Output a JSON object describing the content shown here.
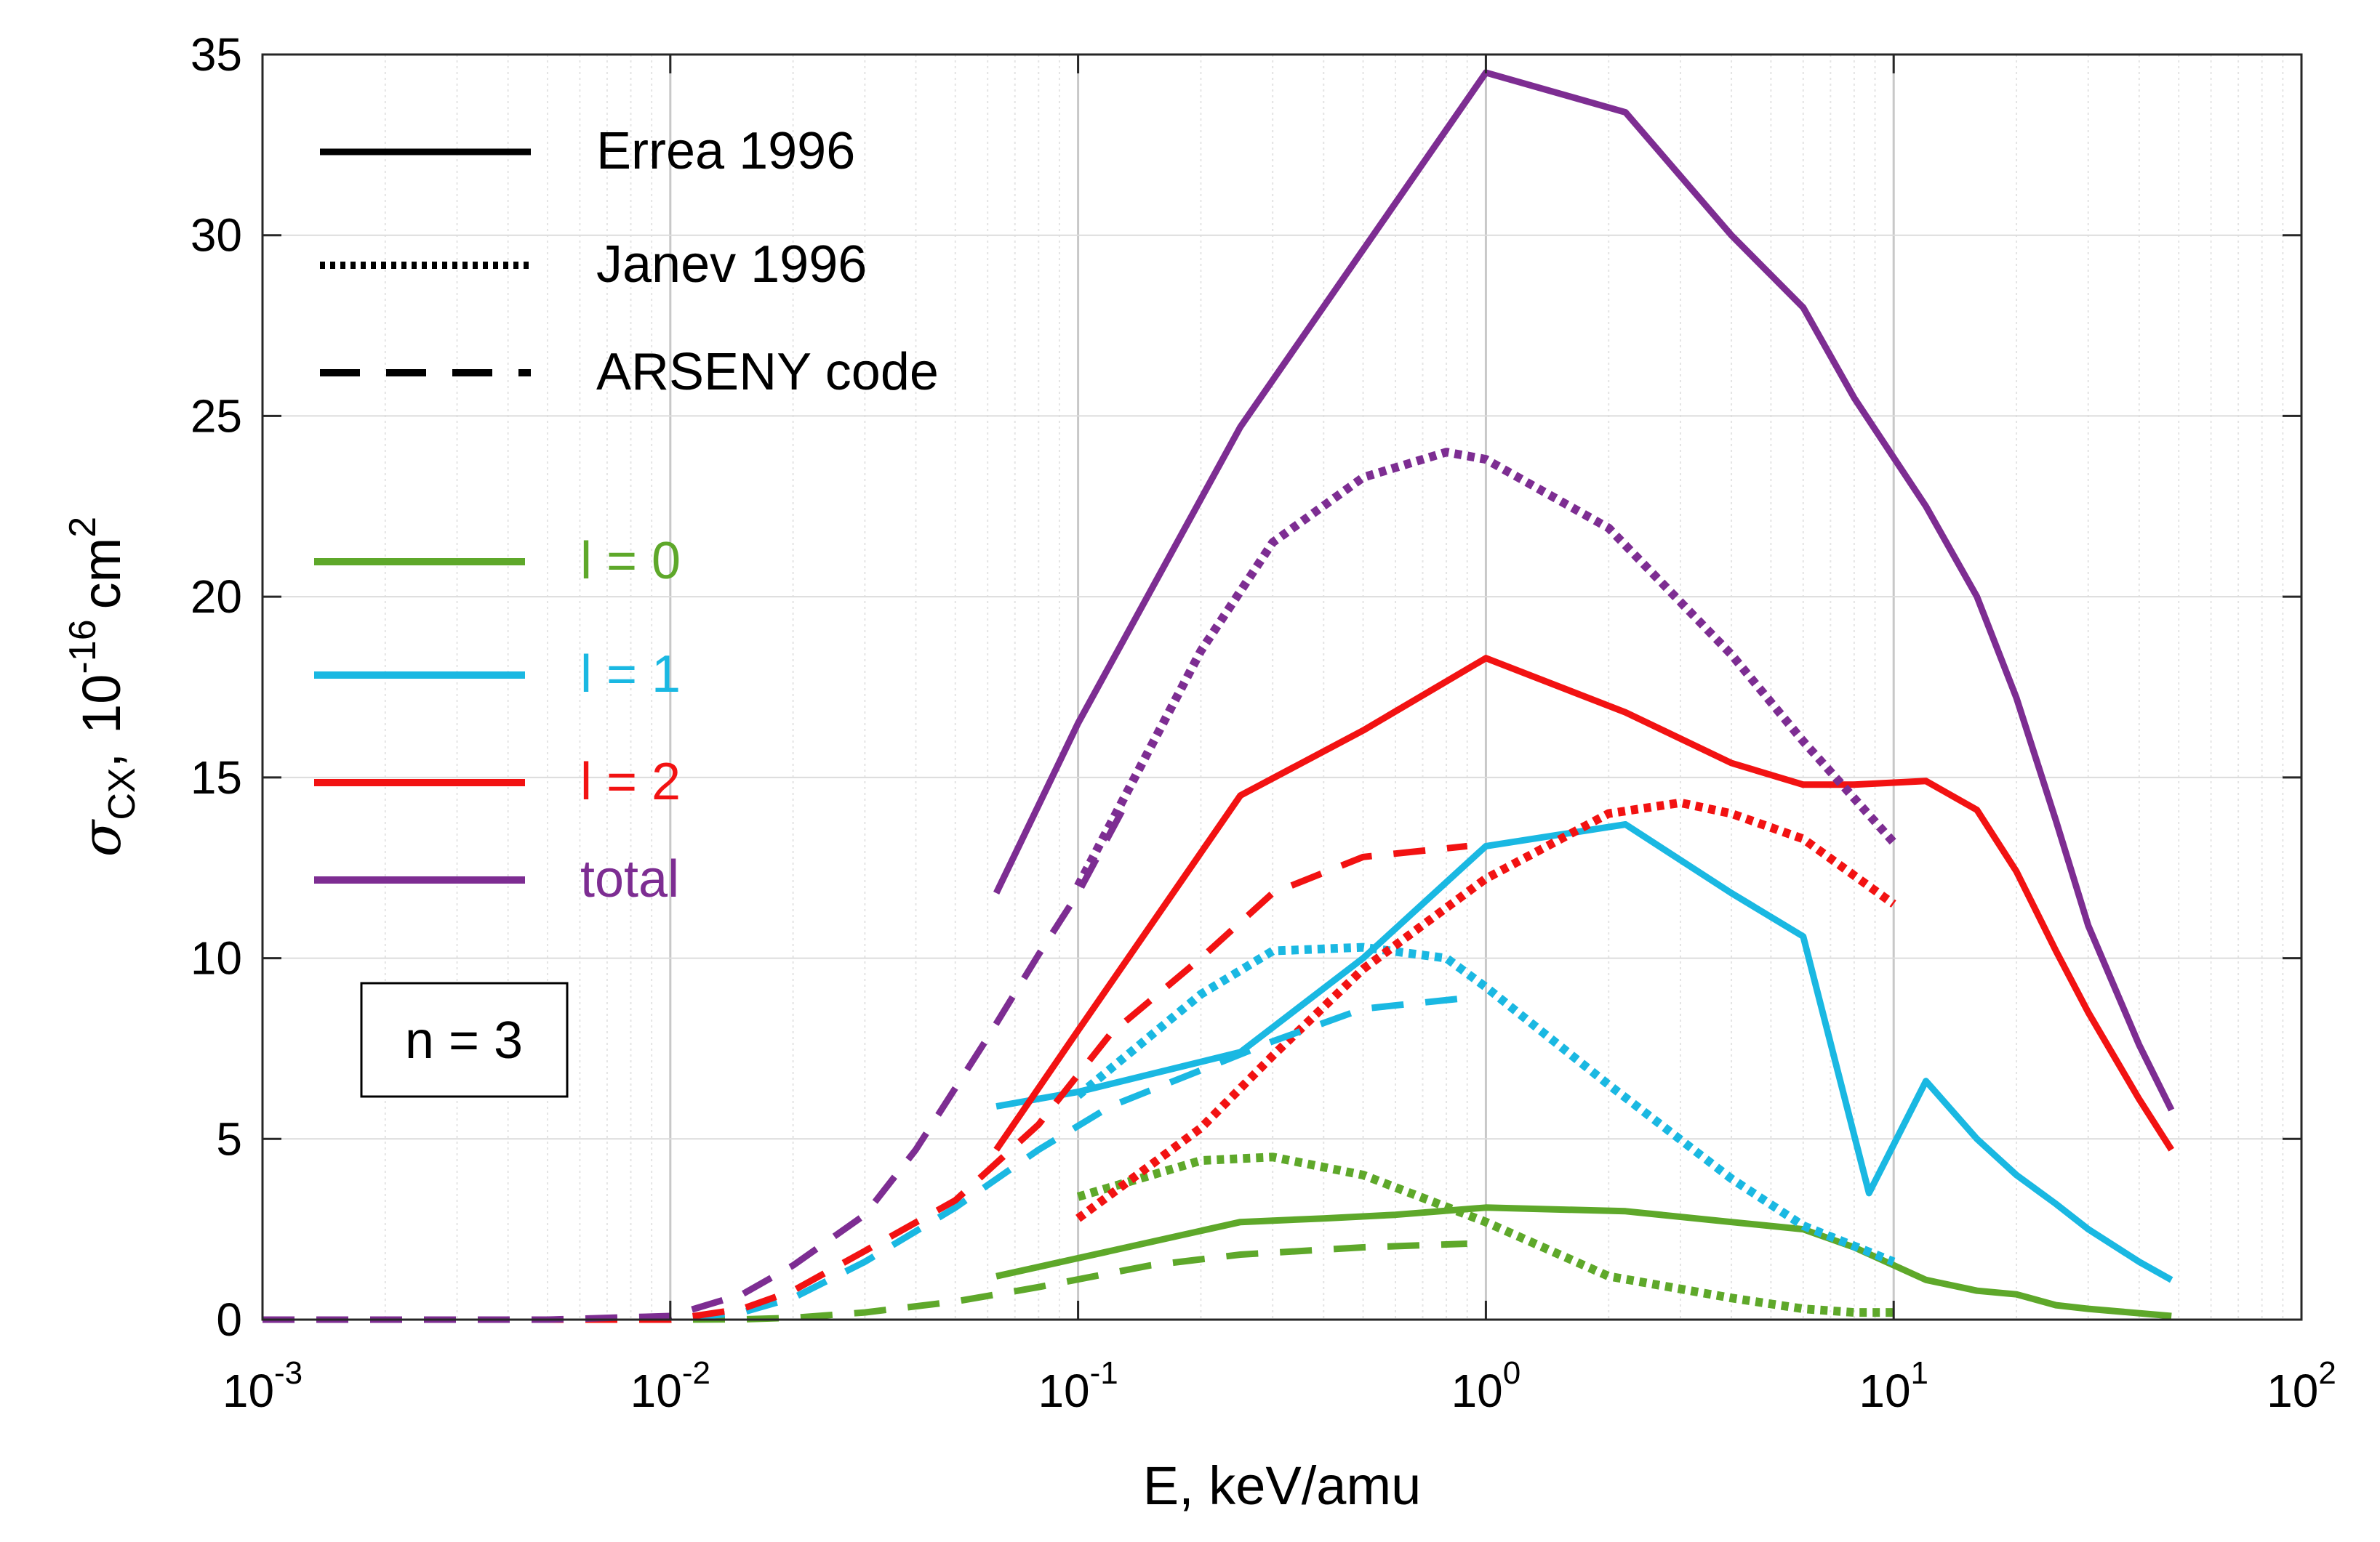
{
  "chart_data": {
    "type": "line",
    "x_scale": "log",
    "xlim": [
      0.001,
      100
    ],
    "ylim": [
      0,
      35
    ],
    "xlabel": "E, keV/amu",
    "ylabel": {
      "sigma": "σ",
      "sub": "CX",
      "comma": ",",
      "base": "10",
      "exp": "-16",
      "unit": "cm",
      "unit_exp": "2"
    },
    "x_ticks": [
      {
        "value": 0.001,
        "base": "10",
        "exp": "-3"
      },
      {
        "value": 0.01,
        "base": "10",
        "exp": "-2"
      },
      {
        "value": 0.1,
        "base": "10",
        "exp": "-1"
      },
      {
        "value": 1,
        "base": "10",
        "exp": "0"
      },
      {
        "value": 10,
        "base": "10",
        "exp": "1"
      },
      {
        "value": 100,
        "base": "10",
        "exp": "2"
      }
    ],
    "y_ticks": [
      0,
      5,
      10,
      15,
      20,
      25,
      30,
      35
    ],
    "grid": true,
    "annotation": "n = 3",
    "colors": {
      "l0": "#5ea82a",
      "l1": "#1ab8e2",
      "l2": "#f21212",
      "total": "#7d2d92"
    },
    "legend_styles": [
      {
        "label": "Errea 1996",
        "dash": "solid"
      },
      {
        "label": "Janev 1996",
        "dash": "dotted"
      },
      {
        "label": "ARSENY code",
        "dash": "dashed"
      }
    ],
    "legend_colors": [
      {
        "label": "l = 0",
        "color": "#5ea82a"
      },
      {
        "label": "l = 1",
        "color": "#1ab8e2"
      },
      {
        "label": "l = 2",
        "color": "#f21212"
      },
      {
        "label": "total",
        "color": "#7d2d92"
      }
    ],
    "series": [
      {
        "name": "l = 0 (Errea 1996)",
        "color": "#5ea82a",
        "dash": "solid",
        "x": [
          0.063,
          0.1,
          0.25,
          0.4,
          0.6,
          1,
          2.2,
          4,
          6,
          8,
          12,
          16,
          20,
          25,
          30,
          48
        ],
        "y": [
          1.2,
          1.7,
          2.7,
          2.8,
          2.9,
          3.1,
          3.0,
          2.7,
          2.5,
          2.0,
          1.1,
          0.8,
          0.7,
          0.4,
          0.3,
          0.1
        ]
      },
      {
        "name": "l = 1 (Errea 1996)",
        "color": "#1ab8e2",
        "dash": "solid",
        "x": [
          0.063,
          0.1,
          0.25,
          0.5,
          1,
          2.2,
          4,
          6,
          8.7,
          12,
          16,
          20,
          25,
          30,
          40,
          48
        ],
        "y": [
          5.9,
          6.3,
          7.4,
          10.0,
          13.1,
          13.7,
          11.8,
          10.6,
          3.5,
          6.6,
          5.0,
          4.0,
          3.2,
          2.5,
          1.6,
          1.1
        ]
      },
      {
        "name": "l = 2 (Errea 1996)",
        "color": "#f21212",
        "dash": "solid",
        "x": [
          0.063,
          0.1,
          0.25,
          0.5,
          1,
          2.2,
          4,
          6,
          8,
          12,
          16,
          20,
          25,
          30,
          40,
          48
        ],
        "y": [
          4.7,
          8.0,
          14.5,
          16.3,
          18.3,
          16.8,
          15.4,
          14.8,
          14.8,
          14.9,
          14.1,
          12.4,
          10.2,
          8.5,
          6.1,
          4.7
        ]
      },
      {
        "name": "total (Errea 1996)",
        "color": "#7d2d92",
        "dash": "solid",
        "x": [
          0.063,
          0.1,
          0.25,
          0.5,
          1,
          2.2,
          4,
          6,
          8,
          12,
          16,
          20,
          25,
          30,
          40,
          48
        ],
        "y": [
          11.8,
          16.5,
          24.7,
          29.6,
          34.5,
          33.4,
          30.0,
          28.0,
          25.5,
          22.5,
          20.0,
          17.2,
          13.8,
          10.9,
          7.6,
          5.8
        ]
      },
      {
        "name": "l = 0 (Janev 1996)",
        "color": "#5ea82a",
        "dash": "dotted",
        "x": [
          0.1,
          0.2,
          0.3,
          0.5,
          1,
          2,
          4,
          6,
          8,
          10
        ],
        "y": [
          3.4,
          4.4,
          4.5,
          4.0,
          2.7,
          1.2,
          0.6,
          0.3,
          0.2,
          0.2
        ]
      },
      {
        "name": "l = 1 (Janev 1996)",
        "color": "#1ab8e2",
        "dash": "dotted",
        "x": [
          0.1,
          0.2,
          0.3,
          0.5,
          0.8,
          1,
          2,
          4,
          6,
          10
        ],
        "y": [
          6.2,
          9.0,
          10.2,
          10.3,
          10.0,
          9.2,
          6.5,
          3.9,
          2.6,
          1.6
        ]
      },
      {
        "name": "l = 2 (Janev 1996)",
        "color": "#f21212",
        "dash": "dotted",
        "x": [
          0.1,
          0.2,
          0.3,
          0.5,
          1,
          2,
          3,
          4,
          6,
          10
        ],
        "y": [
          2.8,
          5.3,
          7.3,
          9.7,
          12.2,
          14.0,
          14.3,
          14.0,
          13.3,
          11.5
        ]
      },
      {
        "name": "total (Janev 1996)",
        "color": "#7d2d92",
        "dash": "dotted",
        "x": [
          0.1,
          0.2,
          0.3,
          0.5,
          0.8,
          1,
          2,
          4,
          6,
          10
        ],
        "y": [
          12.0,
          18.5,
          21.5,
          23.3,
          24.0,
          23.8,
          21.9,
          18.4,
          16.0,
          13.2
        ]
      },
      {
        "name": "l = 0 (ARSENY code)",
        "color": "#5ea82a",
        "dash": "dashed",
        "x": [
          0.001,
          0.005,
          0.01,
          0.015,
          0.02,
          0.03,
          0.05,
          0.08,
          0.15,
          0.25,
          0.5,
          0.9
        ],
        "y": [
          0,
          0,
          0,
          0.01,
          0.05,
          0.2,
          0.5,
          0.9,
          1.5,
          1.8,
          2.0,
          2.1
        ]
      },
      {
        "name": "l = 1 (ARSENY code)",
        "color": "#1ab8e2",
        "dash": "dashed",
        "x": [
          0.001,
          0.005,
          0.01,
          0.015,
          0.02,
          0.03,
          0.05,
          0.08,
          0.12,
          0.2,
          0.3,
          0.5,
          0.9
        ],
        "y": [
          0,
          0,
          0,
          0.2,
          0.6,
          1.6,
          3.1,
          4.7,
          5.9,
          6.9,
          7.7,
          8.6,
          8.9
        ]
      },
      {
        "name": "l = 2 (ARSENY code)",
        "color": "#f21212",
        "dash": "dashed",
        "x": [
          0.001,
          0.005,
          0.01,
          0.015,
          0.02,
          0.03,
          0.05,
          0.08,
          0.12,
          0.2,
          0.3,
          0.5,
          0.9
        ],
        "y": [
          0,
          0,
          0,
          0.3,
          0.8,
          1.9,
          3.3,
          5.4,
          7.9,
          10.0,
          11.8,
          12.8,
          13.1
        ]
      },
      {
        "name": "total (ARSENY code)",
        "color": "#7d2d92",
        "dash": "dashed",
        "x": [
          0.001,
          0.005,
          0.01,
          0.015,
          0.02,
          0.03,
          0.04,
          0.06,
          0.08,
          0.1,
          0.13
        ],
        "y": [
          0,
          0,
          0.1,
          0.7,
          1.5,
          2.9,
          4.7,
          7.8,
          10.1,
          11.8,
          14.2
        ]
      }
    ]
  }
}
